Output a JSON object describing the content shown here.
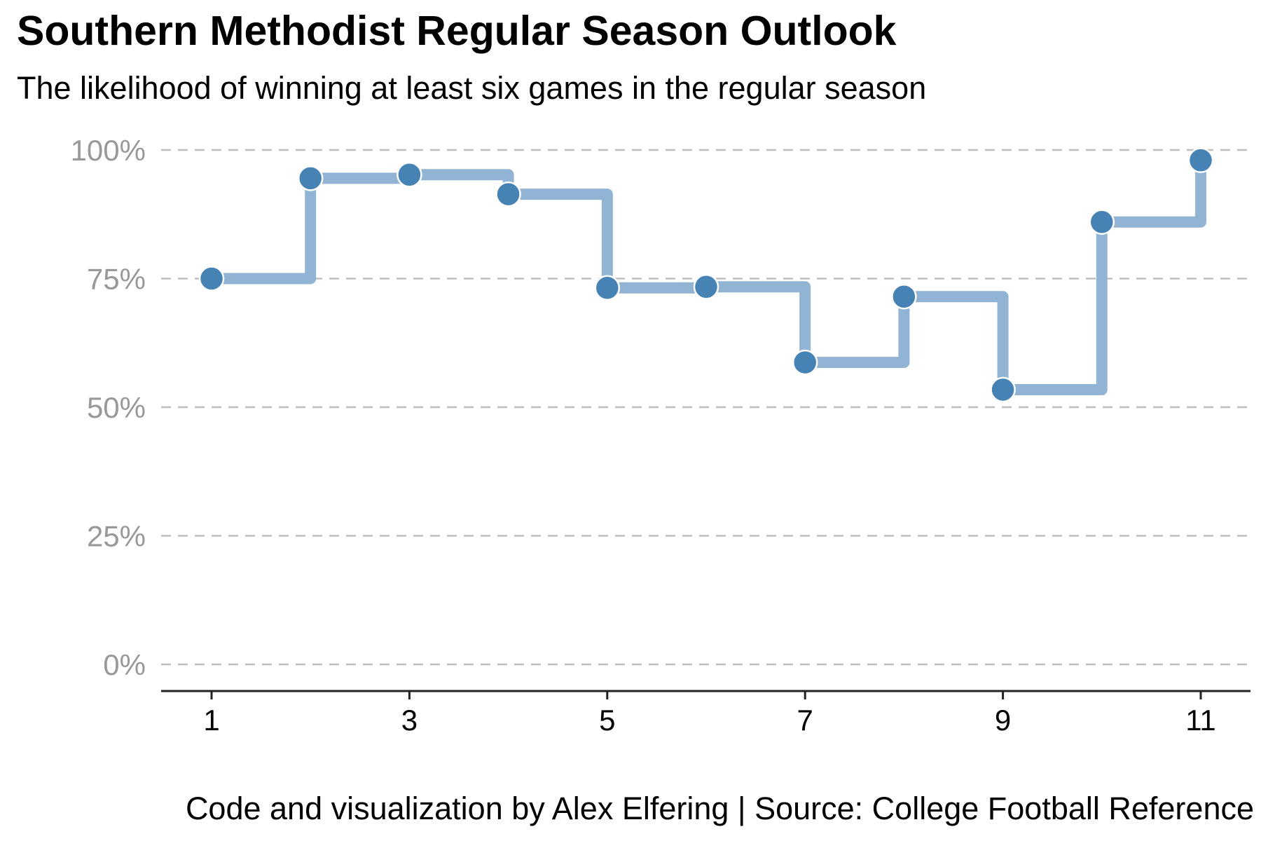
{
  "chart_data": {
    "type": "line",
    "step": true,
    "title": "Southern Methodist Regular Season Outlook",
    "subtitle": "The likelihood of winning at least six games in the regular season",
    "caption": "Code and visualization by Alex Elfering | Source: College Football Reference",
    "xlabel": "",
    "ylabel": "",
    "xlim": [
      1,
      11
    ],
    "ylim": [
      0,
      100
    ],
    "x_ticks": [
      "1",
      "3",
      "5",
      "7",
      "9",
      "11"
    ],
    "y_ticks": [
      "0%",
      "25%",
      "50%",
      "75%",
      "100%"
    ],
    "grid": "horizontal dashed",
    "legend": "none",
    "x": [
      1,
      2,
      3,
      4,
      5,
      6,
      7,
      8,
      9,
      10,
      11
    ],
    "values": [
      75,
      94.5,
      95.2,
      91.4,
      73.2,
      73.4,
      58.7,
      71.5,
      53.4,
      86,
      98
    ],
    "colors": {
      "line": "#92b4d4",
      "point": "#4682b4",
      "grid": "#bdbdbd",
      "axis": "#222222"
    }
  }
}
